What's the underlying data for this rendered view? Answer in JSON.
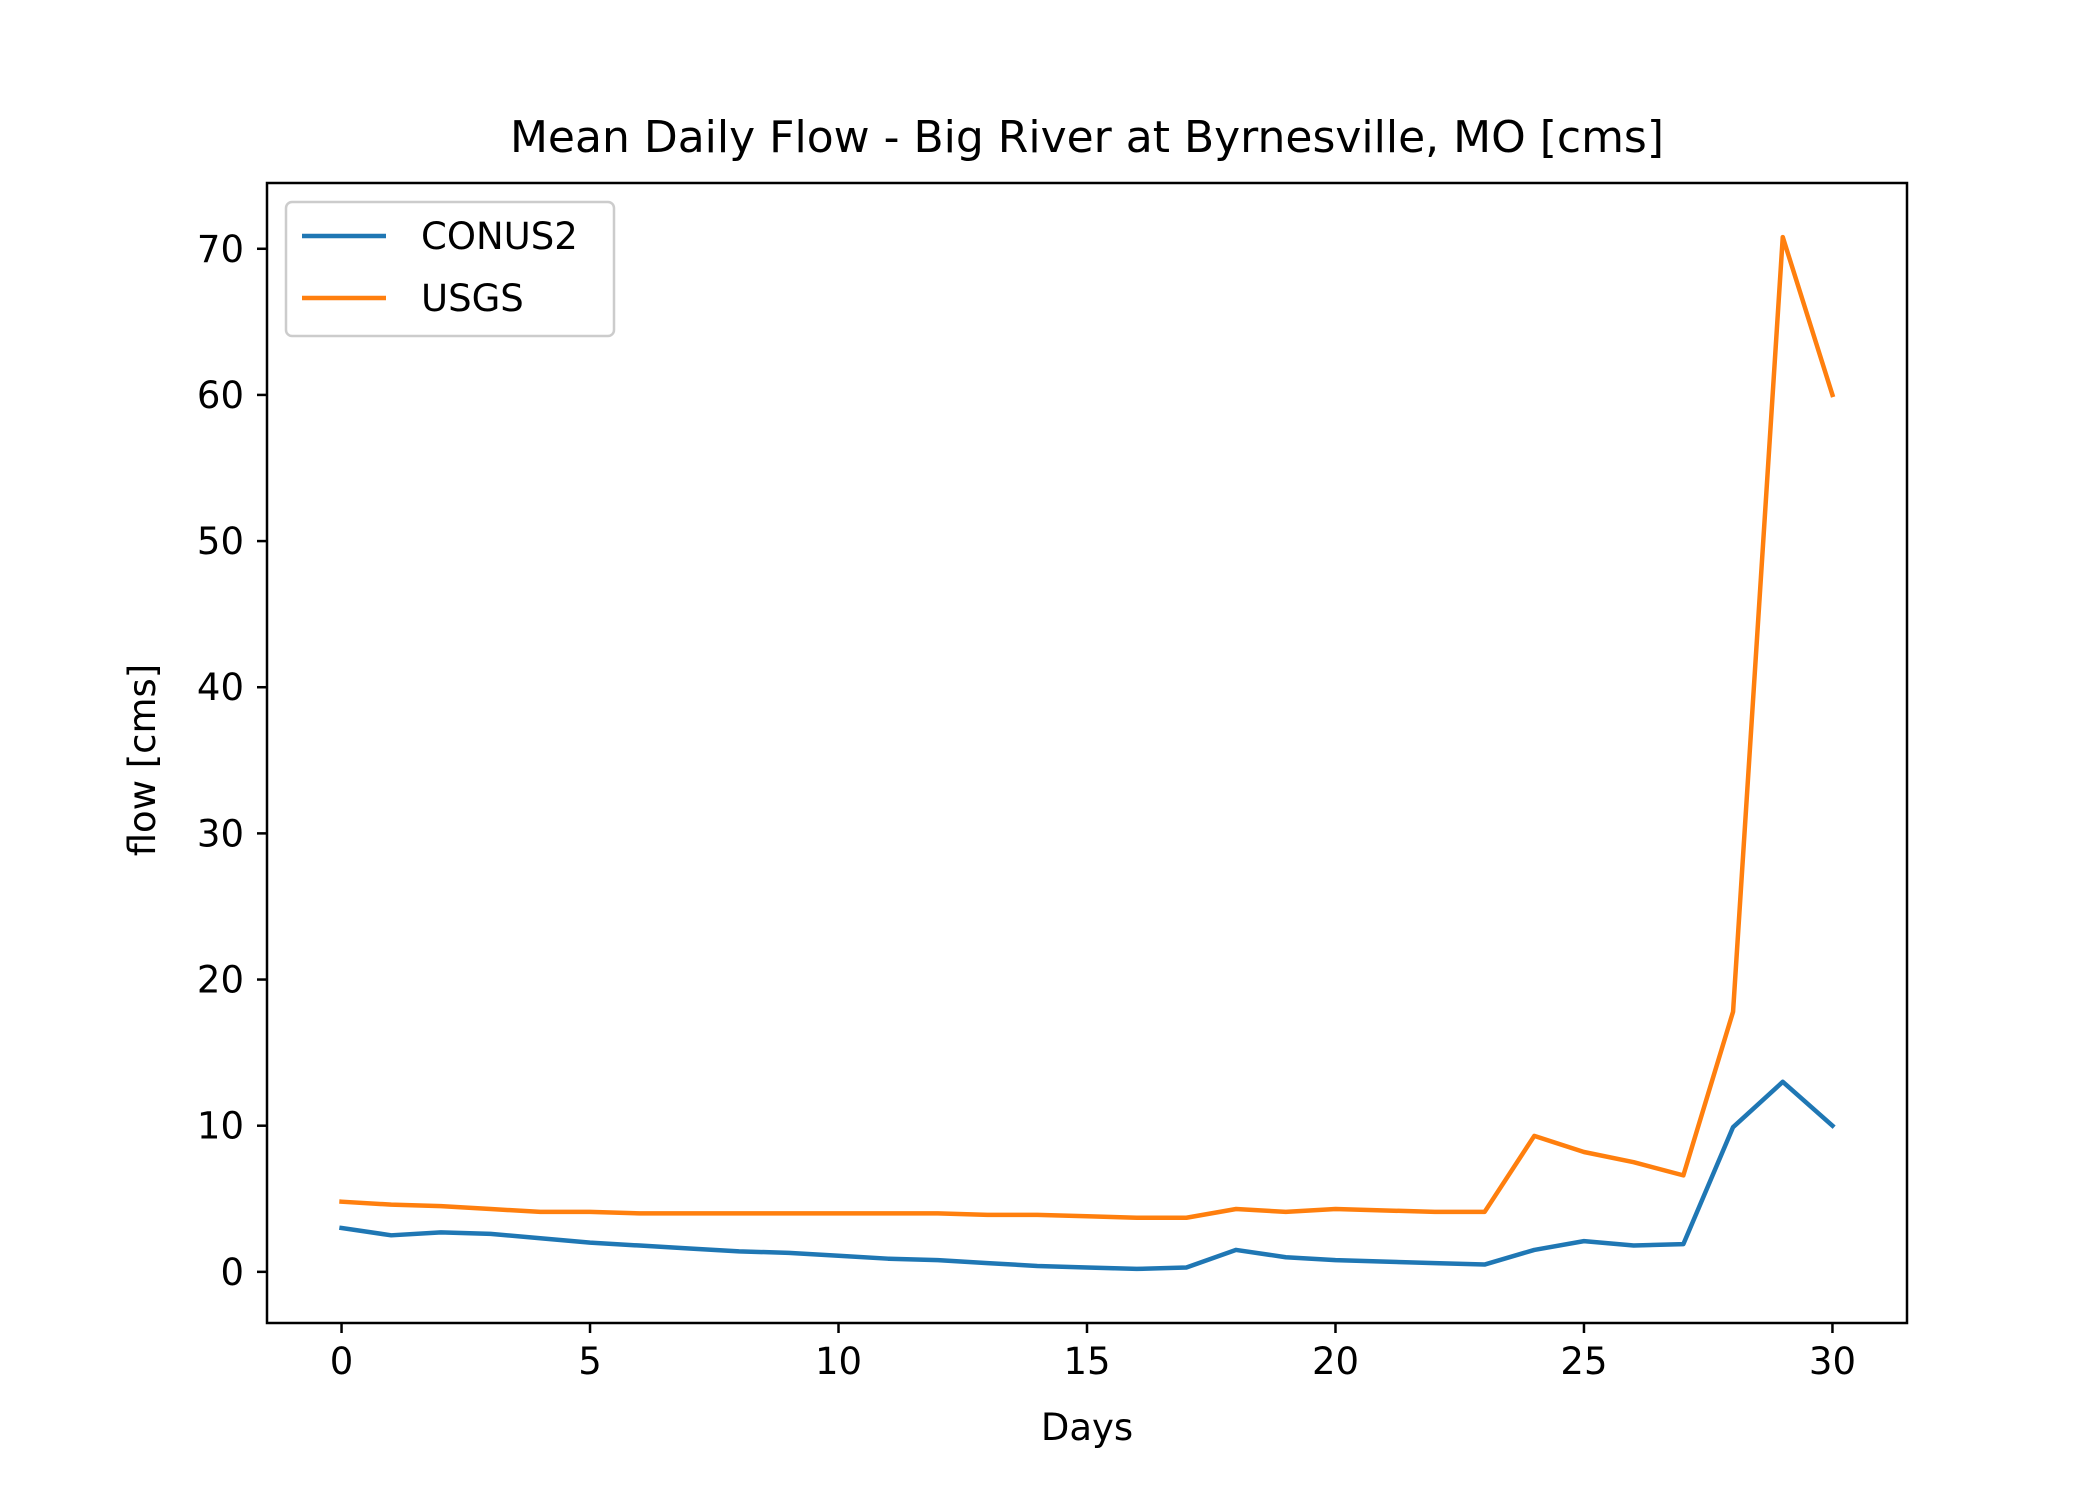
{
  "chart_data": {
    "type": "line",
    "title": "Mean Daily Flow - Big River at Byrnesville, MO [cms]",
    "xlabel": "Days",
    "ylabel": "flow [cms]",
    "xlim": [
      -1.5,
      31.5
    ],
    "ylim": [
      -3.5,
      74.5
    ],
    "xticks": [
      0,
      5,
      10,
      15,
      20,
      25,
      30
    ],
    "yticks": [
      0,
      10,
      20,
      30,
      40,
      50,
      60,
      70
    ],
    "grid": false,
    "legend_position": "top-left",
    "x": [
      0,
      1,
      2,
      3,
      4,
      5,
      6,
      7,
      8,
      9,
      10,
      11,
      12,
      13,
      14,
      15,
      16,
      17,
      18,
      19,
      20,
      21,
      22,
      23,
      24,
      25,
      26,
      27,
      28,
      29,
      30
    ],
    "series": [
      {
        "name": "CONUS2",
        "color": "#1f77b4",
        "values": [
          3.0,
          2.5,
          2.7,
          2.6,
          2.3,
          2.0,
          1.8,
          1.6,
          1.4,
          1.3,
          1.1,
          0.9,
          0.8,
          0.6,
          0.4,
          0.3,
          0.2,
          0.3,
          1.5,
          1.0,
          0.8,
          0.7,
          0.6,
          0.5,
          1.5,
          2.1,
          1.8,
          1.9,
          9.9,
          13.0,
          10.0
        ]
      },
      {
        "name": "USGS",
        "color": "#ff7f0e",
        "values": [
          4.8,
          4.6,
          4.5,
          4.3,
          4.1,
          4.1,
          4.0,
          4.0,
          4.0,
          4.0,
          4.0,
          4.0,
          4.0,
          3.9,
          3.9,
          3.8,
          3.7,
          3.7,
          4.3,
          4.1,
          4.3,
          4.2,
          4.1,
          4.1,
          9.3,
          8.2,
          7.5,
          6.6,
          17.8,
          70.8,
          60.0
        ]
      }
    ]
  }
}
